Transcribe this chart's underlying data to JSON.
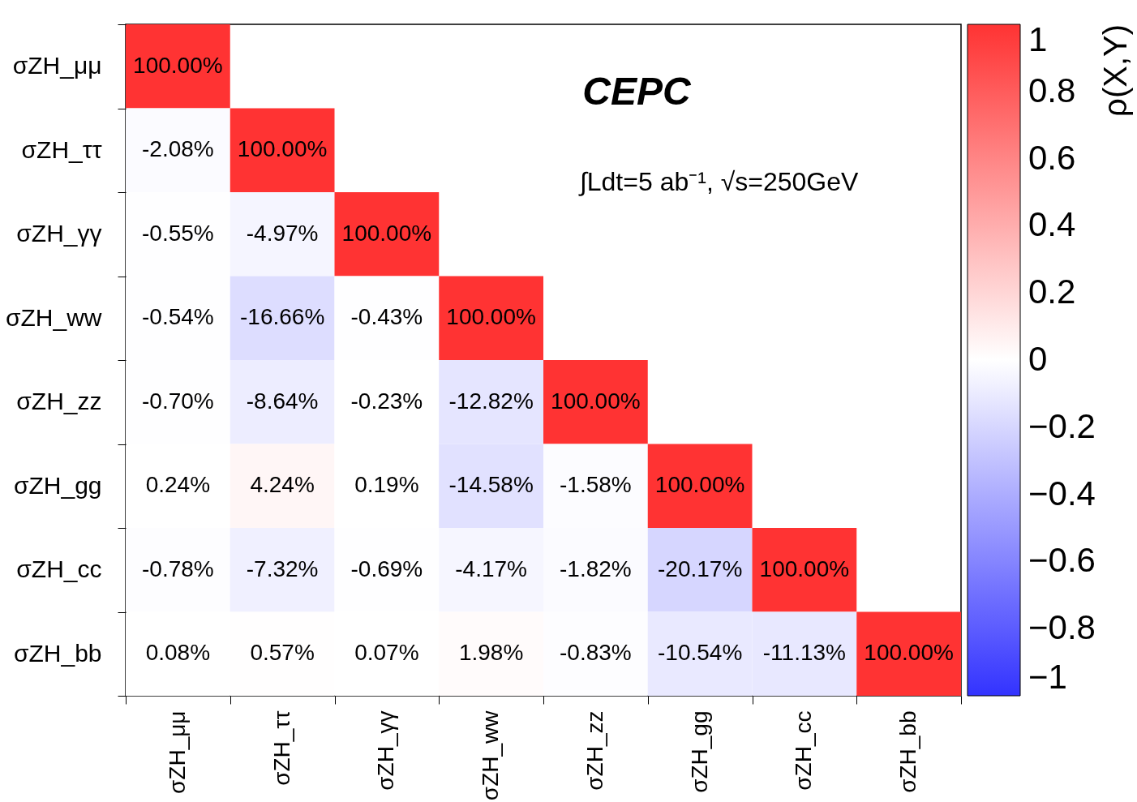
{
  "chart_data": {
    "type": "heatmap",
    "categories": [
      "σZH_μμ",
      "σZH_ττ",
      "σZH_γγ",
      "σZH_ww",
      "σZH_zz",
      "σZH_gg",
      "σZH_cc",
      "σZH_bb"
    ],
    "y_categories": [
      "σZH_μμ",
      "σZH_ττ",
      "σZH_γγ",
      "σZH_ww",
      "σZH_zz",
      "σZH_gg",
      "σZH_cc",
      "σZH_bb"
    ],
    "cells": [
      [
        1.0,
        null,
        null,
        null,
        null,
        null,
        null,
        null
      ],
      [
        -0.0208,
        1.0,
        null,
        null,
        null,
        null,
        null,
        null
      ],
      [
        -0.0055,
        -0.0497,
        1.0,
        null,
        null,
        null,
        null,
        null
      ],
      [
        -0.0054,
        -0.1666,
        -0.0043,
        1.0,
        null,
        null,
        null,
        null
      ],
      [
        -0.007,
        -0.0864,
        -0.0023,
        -0.1282,
        1.0,
        null,
        null,
        null
      ],
      [
        0.0024,
        0.0424,
        0.0019,
        -0.1458,
        -0.0158,
        1.0,
        null,
        null
      ],
      [
        -0.0078,
        -0.0732,
        -0.0069,
        -0.0417,
        -0.0182,
        -0.2017,
        1.0,
        null
      ],
      [
        0.0008,
        0.0057,
        0.0007,
        0.0198,
        -0.0083,
        -0.1054,
        -0.1113,
        1.0
      ]
    ],
    "cell_labels": [
      [
        "100.00%",
        null,
        null,
        null,
        null,
        null,
        null,
        null
      ],
      [
        "-2.08%",
        "100.00%",
        null,
        null,
        null,
        null,
        null,
        null
      ],
      [
        "-0.55%",
        "-4.97%",
        "100.00%",
        null,
        null,
        null,
        null,
        null
      ],
      [
        "-0.54%",
        "-16.66%",
        "-0.43%",
        "100.00%",
        null,
        null,
        null,
        null
      ],
      [
        "-0.70%",
        "-8.64%",
        "-0.23%",
        "-12.82%",
        "100.00%",
        null,
        null,
        null
      ],
      [
        "0.24%",
        "4.24%",
        "0.19%",
        "-14.58%",
        "-1.58%",
        "100.00%",
        null,
        null
      ],
      [
        "-0.78%",
        "-7.32%",
        "-0.69%",
        "-4.17%",
        "-1.82%",
        "-20.17%",
        "100.00%",
        null
      ],
      [
        "0.08%",
        "0.57%",
        "0.07%",
        "1.98%",
        "-0.83%",
        "-10.54%",
        "-11.13%",
        "100.00%"
      ]
    ],
    "clim": [
      -1,
      1
    ],
    "cticks": [
      1,
      0.8,
      0.6,
      0.4,
      0.2,
      0,
      {
        "value": -0.2,
        "label": "−0.2"
      },
      {
        "value": -0.4,
        "label": "−0.4"
      },
      {
        "value": -0.6,
        "label": "−0.6"
      },
      {
        "value": -0.8,
        "label": "−0.8"
      },
      {
        "value": -1,
        "label": "−1"
      }
    ],
    "clabel": "ρ(X,Y)",
    "annotations": [
      "CEPC",
      "∫Ldt=5 ab⁻¹, √s=250GeV"
    ]
  }
}
